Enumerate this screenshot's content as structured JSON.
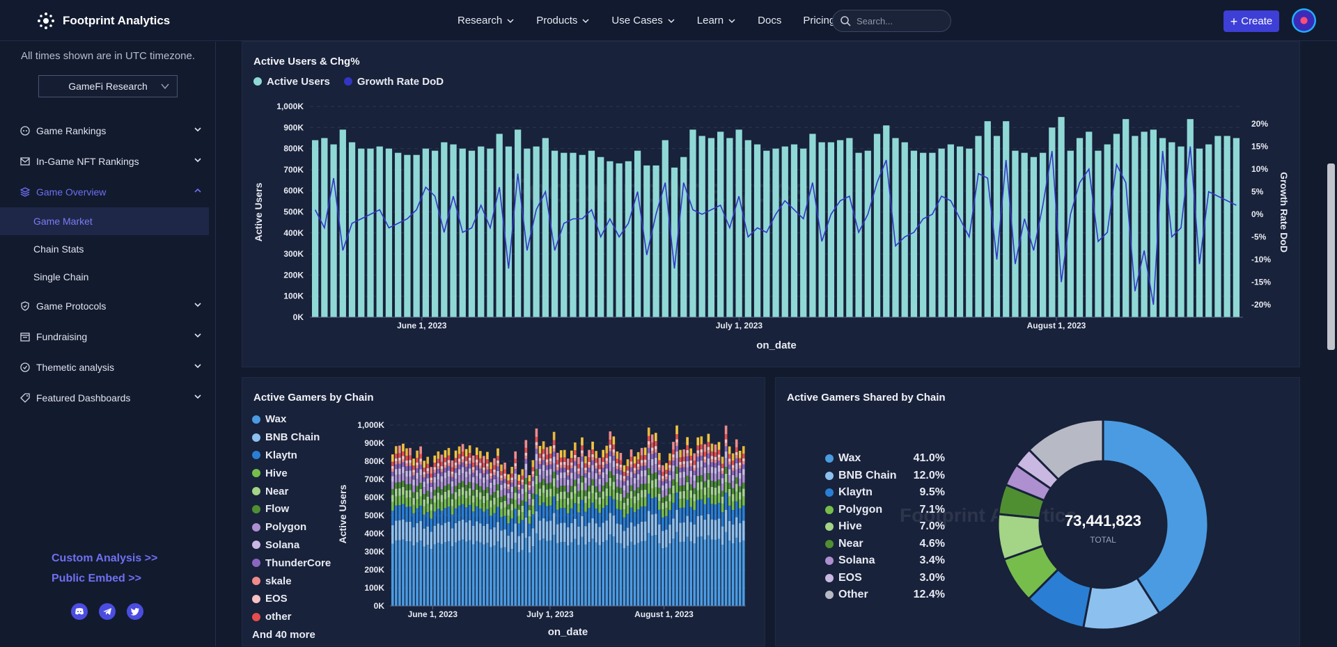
{
  "header": {
    "logo_text": "Footprint Analytics",
    "nav": [
      {
        "label": "Research",
        "dropdown": true
      },
      {
        "label": "Products",
        "dropdown": true
      },
      {
        "label": "Use Cases",
        "dropdown": true
      },
      {
        "label": "Learn",
        "dropdown": true
      },
      {
        "label": "Docs",
        "dropdown": false
      },
      {
        "label": "Pricing",
        "dropdown": false
      }
    ],
    "search_placeholder": "Search...",
    "create_label": "Create"
  },
  "sidebar": {
    "timezone_note": "All times shown are in UTC timezone.",
    "dashboard_select": "GameFi Research",
    "menu": [
      {
        "label": "Game Rankings",
        "icon": "game-icon",
        "expanded": false
      },
      {
        "label": "In-Game NFT Rankings",
        "icon": "mail-icon",
        "expanded": false
      },
      {
        "label": "Game Overview",
        "icon": "stack-icon",
        "expanded": true,
        "active": true,
        "children": [
          {
            "label": "Game Market",
            "selected": true
          },
          {
            "label": "Chain Stats",
            "selected": false
          },
          {
            "label": "Single Chain",
            "selected": false
          }
        ]
      },
      {
        "label": "Game Protocols",
        "icon": "shield-icon",
        "expanded": false
      },
      {
        "label": "Fundraising",
        "icon": "calendar-icon",
        "expanded": false
      },
      {
        "label": "Themetic analysis",
        "icon": "check-circle-icon",
        "expanded": false
      },
      {
        "label": "Featured Dashboards",
        "icon": "tag-icon",
        "expanded": false
      }
    ],
    "links": [
      "Custom Analysis >>",
      "Public Embed >>"
    ],
    "social": [
      "discord-icon",
      "telegram-icon",
      "twitter-icon"
    ]
  },
  "watermark": "Footprint Analytics",
  "colors": {
    "accent": "#3d3fd6",
    "bar": "#8fd8d6",
    "line": "#3335c4"
  },
  "chart_data": [
    {
      "id": "active-users",
      "type": "bar",
      "title": "Active Users & Chg%",
      "xlabel": "on_date",
      "ylabel": "Active Users",
      "y2label": "Growth Rate DoD",
      "ylim": [
        0,
        1000000
      ],
      "y2lim": [
        -22,
        24
      ],
      "yticks": [
        "0K",
        "100K",
        "200K",
        "300K",
        "400K",
        "500K",
        "600K",
        "700K",
        "800K",
        "900K",
        "1,000K"
      ],
      "y2ticks": [
        "-20%",
        "-15%",
        "-10%",
        "-5%",
        "0%",
        "5%",
        "10%",
        "15%",
        "20%"
      ],
      "xticks": [
        "June 1, 2023",
        "July 1, 2023",
        "August 1, 2023"
      ],
      "series": [
        {
          "name": "Active Users",
          "kind": "bar",
          "values": [
            840,
            850,
            820,
            890,
            830,
            800,
            800,
            810,
            800,
            780,
            770,
            770,
            800,
            790,
            830,
            820,
            800,
            790,
            810,
            800,
            870,
            810,
            890,
            800,
            810,
            850,
            790,
            780,
            780,
            770,
            790,
            760,
            740,
            730,
            740,
            790,
            720,
            720,
            840,
            710,
            760,
            890,
            860,
            850,
            880,
            850,
            890,
            840,
            820,
            790,
            800,
            810,
            820,
            800,
            870,
            830,
            830,
            840,
            850,
            780,
            790,
            870,
            910,
            850,
            830,
            790,
            780,
            780,
            800,
            820,
            810,
            800,
            860,
            930,
            860,
            930,
            790,
            780,
            760,
            780,
            900,
            950,
            790,
            850,
            880,
            790,
            820,
            870,
            940,
            860,
            880,
            890,
            850,
            830,
            810,
            940,
            800,
            820,
            860,
            860,
            850
          ],
          "unit": "K"
        },
        {
          "name": "Growth Rate DoD",
          "kind": "line",
          "values": [
            1,
            -3,
            8,
            -8,
            -2,
            -1,
            0,
            1,
            -3,
            -2,
            -1,
            1,
            6,
            4,
            -4,
            4,
            -4,
            -3,
            2,
            -3,
            6,
            -12,
            9,
            -8,
            1,
            5,
            -8,
            -2,
            -1,
            -1,
            1,
            -5,
            -1,
            -5,
            -2,
            5,
            -9,
            0,
            7,
            -12,
            7,
            1,
            0,
            1,
            2,
            -3,
            4,
            -5,
            -3,
            -4,
            0,
            3,
            1,
            -1,
            7,
            -6,
            0,
            3,
            4,
            -4,
            0,
            7,
            12,
            -7,
            -5,
            -4,
            -1,
            0,
            4,
            3,
            -1,
            -5,
            9,
            8,
            -10,
            12,
            -11,
            -1,
            -8,
            2,
            14,
            -15,
            0,
            7,
            10,
            -6,
            -4,
            11,
            7,
            -17,
            -8,
            -20,
            14,
            -5,
            -3,
            15,
            -11,
            5,
            4,
            3,
            2
          ],
          "unit": "%"
        }
      ]
    },
    {
      "id": "active-gamers-by-chain",
      "type": "bar",
      "stacked": true,
      "title": "Active Gamers by Chain",
      "xlabel": "on_date",
      "ylabel": "Active Users",
      "ylim": [
        0,
        1000000
      ],
      "yticks": [
        "0K",
        "100K",
        "200K",
        "300K",
        "400K",
        "500K",
        "600K",
        "700K",
        "800K",
        "900K",
        "1,000K"
      ],
      "xticks": [
        "June 1, 2023",
        "July 1, 2023",
        "August 1, 2023"
      ],
      "legend": [
        {
          "name": "Wax",
          "color": "#4a9be2"
        },
        {
          "name": "BNB Chain",
          "color": "#8cc0ef"
        },
        {
          "name": "Klaytn",
          "color": "#2a7fd4"
        },
        {
          "name": "Hive",
          "color": "#76bd4b"
        },
        {
          "name": "Near",
          "color": "#a4d486"
        },
        {
          "name": "Flow",
          "color": "#4f8f32"
        },
        {
          "name": "Polygon",
          "color": "#ae8fd0"
        },
        {
          "name": "Solana",
          "color": "#c9b8e2"
        },
        {
          "name": "ThunderCore",
          "color": "#8b66c0"
        },
        {
          "name": "skale",
          "color": "#f08b8b"
        },
        {
          "name": "EOS",
          "color": "#f6c2c2"
        },
        {
          "name": "other",
          "color": "#e64d4d"
        }
      ],
      "more_label": "And 40 more"
    },
    {
      "id": "active-gamers-shared",
      "type": "pie",
      "title": "Active Gamers Shared by Chain",
      "total": "73,441,823",
      "total_label": "TOTAL",
      "slices": [
        {
          "name": "Wax",
          "pct": "41.0%",
          "value": 41.0,
          "color": "#4a9be2"
        },
        {
          "name": "BNB Chain",
          "pct": "12.0%",
          "value": 12.0,
          "color": "#8cc0ef"
        },
        {
          "name": "Klaytn",
          "pct": "9.5%",
          "value": 9.5,
          "color": "#2a7fd4"
        },
        {
          "name": "Polygon",
          "pct": "7.1%",
          "value": 7.1,
          "color": "#76bd4b"
        },
        {
          "name": "Hive",
          "pct": "7.0%",
          "value": 7.0,
          "color": "#a4d486"
        },
        {
          "name": "Near",
          "pct": "4.6%",
          "value": 4.6,
          "color": "#4f8f32"
        },
        {
          "name": "Solana",
          "pct": "3.4%",
          "value": 3.4,
          "color": "#ae8fd0"
        },
        {
          "name": "EOS",
          "pct": "3.0%",
          "value": 3.0,
          "color": "#c9b8e2"
        },
        {
          "name": "Other",
          "pct": "12.4%",
          "value": 12.4,
          "color": "#b7bac5"
        }
      ]
    }
  ]
}
